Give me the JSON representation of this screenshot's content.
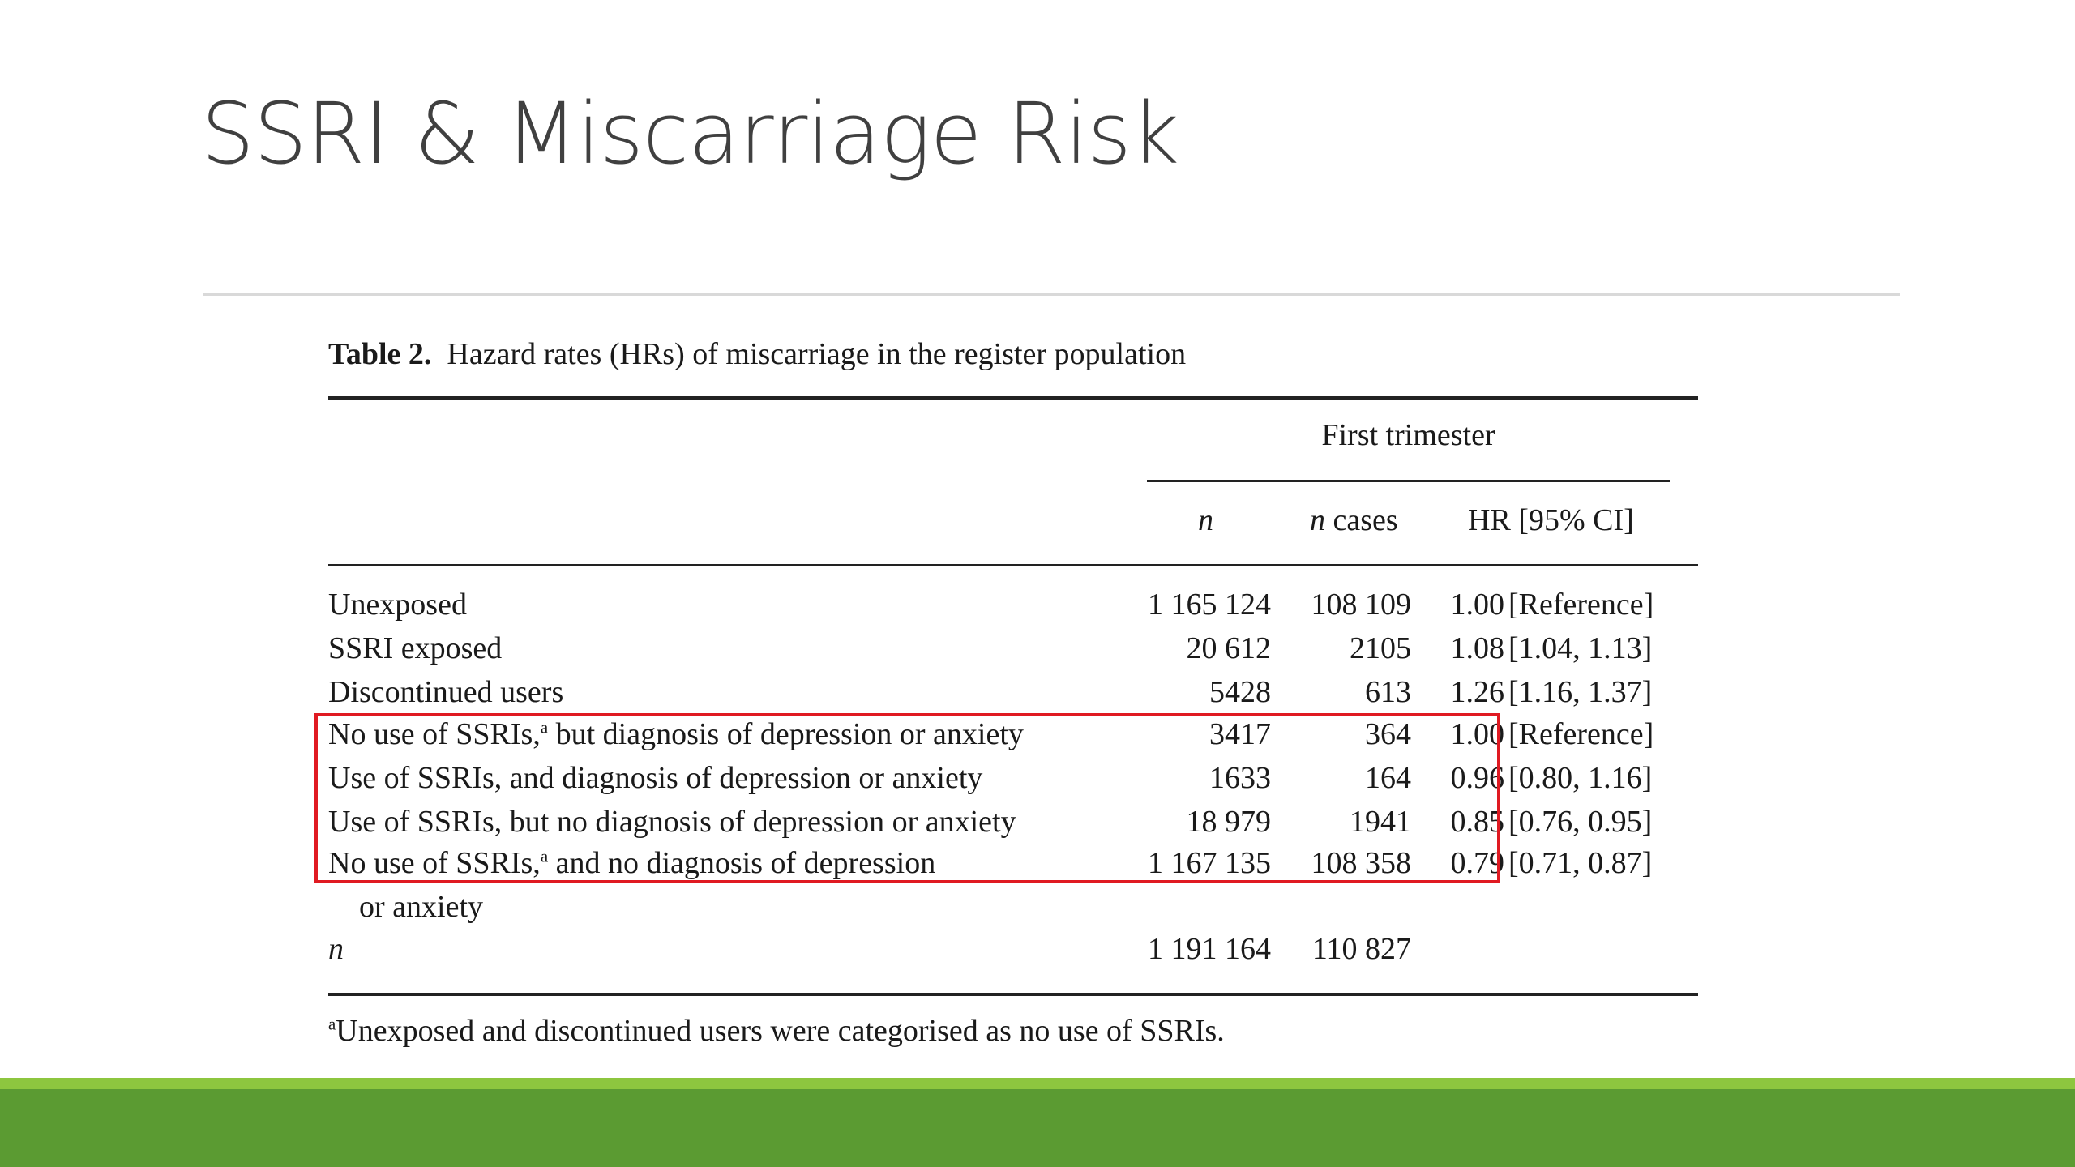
{
  "slide": {
    "title": "SSRI & Miscarriage Risk",
    "accent_colors": {
      "bar_light": "#8dc63f",
      "bar_dark": "#5b9b32",
      "highlight_box": "#e01a22"
    }
  },
  "table": {
    "caption_label": "Table 2.",
    "caption_text": "Hazard rates (HRs) of miscarriage in the register population",
    "span_header": "First trimester",
    "columns": {
      "n": "n",
      "cases_italic": "n",
      "cases_rest": " cases",
      "hr": "HR [95% CI]"
    },
    "rows": [
      {
        "label": "Unexposed",
        "n": "1 165 124",
        "cases": "108 109",
        "hr": "1.00",
        "ci": "[Reference]"
      },
      {
        "label": "SSRI exposed",
        "n": "20 612",
        "cases": "2105",
        "hr": "1.08",
        "ci": "[1.04, 1.13]"
      },
      {
        "label": "Discontinued users",
        "n": "5428",
        "cases": "613",
        "hr": "1.26",
        "ci": "[1.16, 1.37]"
      },
      {
        "label_a": "No use of SSRIs,",
        "sup": "a",
        "label_b": " but diagnosis of depression or anxiety",
        "n": "3417",
        "cases": "364",
        "hr": "1.00",
        "ci": "[Reference]"
      },
      {
        "label": "Use of SSRIs, and diagnosis of depression or anxiety",
        "n": "1633",
        "cases": "164",
        "hr": "0.96",
        "ci": "[0.80, 1.16]"
      },
      {
        "label": "Use of SSRIs, but no diagnosis of depression or anxiety",
        "n": "18 979",
        "cases": "1941",
        "hr": "0.85",
        "ci": "[0.76, 0.95]"
      },
      {
        "label_a": "No use of SSRIs,",
        "sup": "a",
        "label_b": " and no diagnosis of depression",
        "label_cont": "or anxiety",
        "n": "1 167 135",
        "cases": "108 358",
        "hr": "0.79",
        "ci": "[0.71, 0.87]"
      }
    ],
    "total_row": {
      "label": "n",
      "n": "1 191 164",
      "cases": "110 827"
    },
    "footnote_sup": "a",
    "footnote_text": "Unexposed and discontinued users were categorised as no use of SSRIs."
  }
}
